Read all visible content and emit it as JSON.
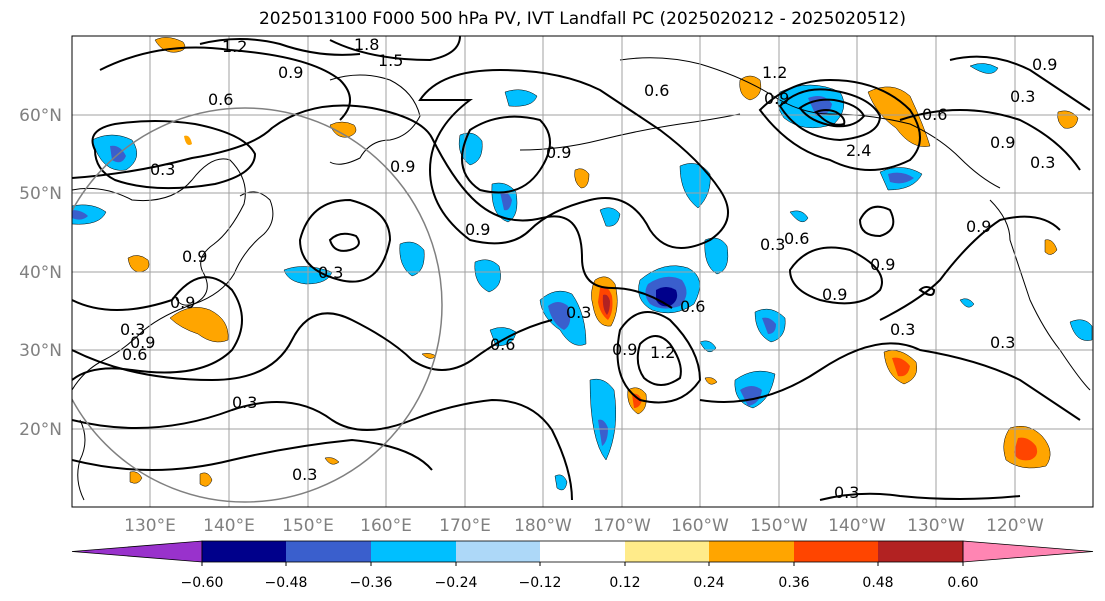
{
  "title": "2025013100 F000 500 hPa PV, IVT Landfall PC (2025020212 - 2025020512)",
  "lat_labels": [
    "60°N",
    "50°N",
    "40°N",
    "30°N",
    "20°N"
  ],
  "lon_labels": [
    "130°E",
    "140°E",
    "150°E",
    "160°E",
    "170°E",
    "180°W",
    "170°W",
    "160°W",
    "150°W",
    "140°W",
    "130°W",
    "120°W"
  ],
  "map": {
    "lon_range": [
      120,
      250
    ],
    "lat_range": [
      10,
      70
    ],
    "grid": true,
    "circle_center_label": "none"
  },
  "contour_labels": [
    "1.2",
    "1.8",
    "1.5",
    "0.9",
    "0.6",
    "0.3",
    "0.9",
    "0.9",
    "0.3",
    "0.9",
    "0.9",
    "0.3",
    "0.6",
    "0.9",
    "0.3",
    "0.9",
    "0.9",
    "0.6",
    "0.3",
    "0.3",
    "0.6",
    "1.2",
    "0.9",
    "0.6",
    "0.3",
    "0.9",
    "0.6",
    "1.2",
    "2.4",
    "0.9",
    "0.6",
    "0.9",
    "0.3",
    "0.9",
    "0.3",
    "0.3",
    "0.9",
    "0.3",
    "0.3"
  ],
  "colorbar": {
    "ticks": [
      "−0.60",
      "−0.48",
      "−0.36",
      "−0.24",
      "−0.12",
      "0.12",
      "0.24",
      "0.36",
      "0.48",
      "0.60"
    ],
    "colors": [
      "#9932cc",
      "#00008b",
      "#3a5fcd",
      "#00bfff",
      "#add8f8",
      "#ffffff",
      "#ffeb8a",
      "#ffa500",
      "#ff4500",
      "#b22222",
      "#ff85b3"
    ]
  }
}
